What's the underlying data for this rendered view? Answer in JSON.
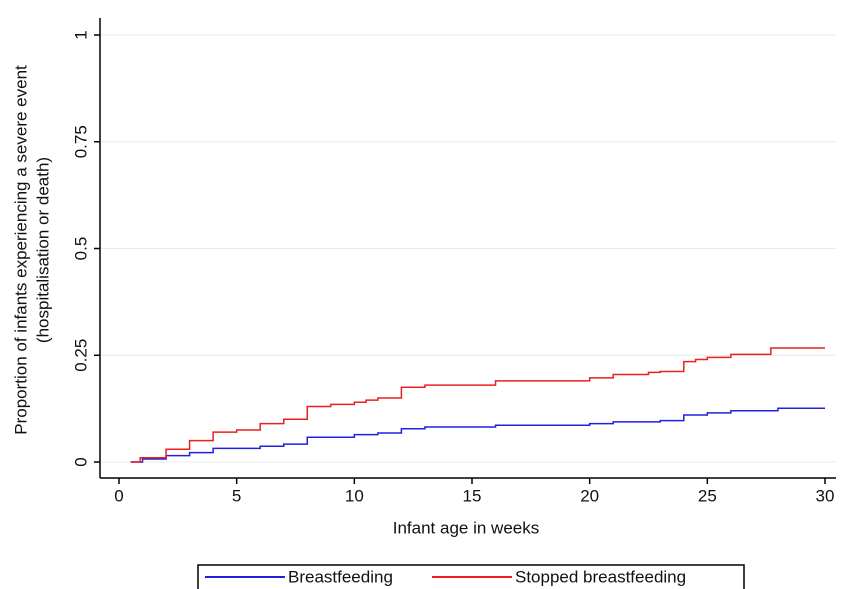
{
  "chart_data": {
    "type": "step",
    "xlabel": "Infant age in weeks",
    "ylabel": [
      "Proportion of infants experiencing  a severe event",
      "(hospitalisation or death)"
    ],
    "xlim": [
      0,
      30
    ],
    "xticks": [
      0,
      5,
      10,
      15,
      20,
      25,
      30
    ],
    "ylim": [
      0,
      1
    ],
    "yticks": [
      0,
      0.25,
      0.5,
      0.75,
      1
    ],
    "grid": true,
    "legend": "bottom",
    "series": [
      {
        "name": "Breastfeeding",
        "color": "#2020e0",
        "x": [
          0.5,
          1,
          2,
          3,
          4,
          6,
          7,
          8,
          10,
          11,
          12,
          13,
          16,
          20,
          21,
          23,
          24,
          25,
          26,
          28,
          30
        ],
        "values": [
          0,
          0.007,
          0.015,
          0.022,
          0.032,
          0.037,
          0.042,
          0.058,
          0.064,
          0.068,
          0.078,
          0.082,
          0.086,
          0.09,
          0.094,
          0.097,
          0.11,
          0.115,
          0.12,
          0.126,
          0.126
        ]
      },
      {
        "name": "Stopped breastfeeding",
        "color": "#e82020",
        "x": [
          0.5,
          0.9,
          2,
          3,
          4,
          5,
          6,
          7,
          8,
          9,
          10,
          10.5,
          11,
          12,
          13,
          16,
          20,
          21,
          22.5,
          23,
          24,
          24.5,
          25,
          26,
          27.7,
          30
        ],
        "values": [
          0,
          0.01,
          0.03,
          0.05,
          0.07,
          0.075,
          0.09,
          0.1,
          0.13,
          0.135,
          0.14,
          0.145,
          0.15,
          0.175,
          0.18,
          0.19,
          0.197,
          0.205,
          0.21,
          0.212,
          0.235,
          0.24,
          0.245,
          0.252,
          0.267,
          0.267
        ]
      }
    ]
  }
}
